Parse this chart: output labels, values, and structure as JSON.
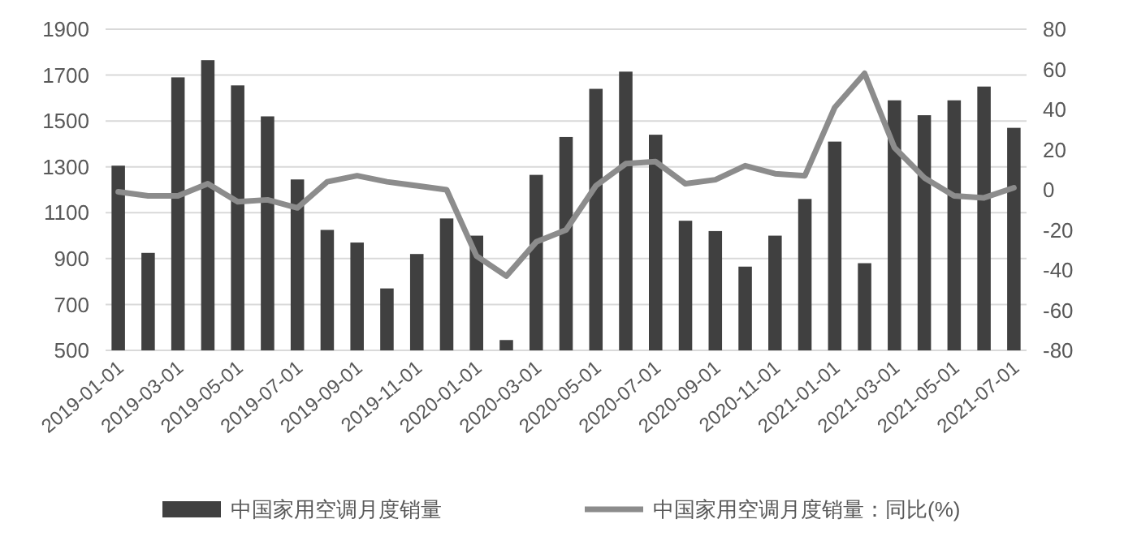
{
  "chart_data": {
    "type": "bar",
    "categories": [
      "2019-01-01",
      null,
      "2019-03-01",
      null,
      "2019-05-01",
      null,
      "2019-07-01",
      null,
      "2019-09-01",
      null,
      "2019-11-01",
      null,
      "2020-01-01",
      null,
      "2020-03-01",
      null,
      "2020-05-01",
      null,
      "2020-07-01",
      null,
      "2020-09-01",
      null,
      "2020-11-01",
      null,
      "2021-01-01",
      null,
      "2021-03-01",
      null,
      "2021-05-01",
      null,
      "2021-07-01"
    ],
    "series": [
      {
        "name": "中国家用空调月度销量",
        "color": "#404040",
        "values": [
          1305,
          925,
          1690,
          1765,
          1655,
          1520,
          1245,
          1025,
          970,
          770,
          920,
          1075,
          1000,
          545,
          1265,
          1430,
          1640,
          1715,
          1440,
          1065,
          1020,
          865,
          1000,
          1160,
          1410,
          880,
          1590,
          1525,
          1590,
          1650,
          1470
        ]
      },
      {
        "name": "中国家用空调月度销量：同比(%)",
        "type": "line",
        "axis": "y2",
        "color": "#8c8c8c",
        "values": [
          -1,
          -3,
          -3,
          3,
          -6,
          -5,
          -9,
          4,
          7,
          4,
          2,
          0,
          -33,
          -43,
          -26,
          -20,
          2,
          13,
          14,
          3,
          5,
          12,
          8,
          7,
          41,
          58,
          21,
          6,
          -3,
          -4,
          1
        ]
      }
    ],
    "ylim": [
      500,
      1900
    ],
    "yticks": [
      500,
      700,
      900,
      1100,
      1300,
      1500,
      1700,
      1900
    ],
    "y2lim": [
      -80,
      80
    ],
    "y2ticks": [
      -80,
      -60,
      -40,
      -20,
      0,
      20,
      40,
      60,
      80
    ],
    "grid": "y",
    "legend": "bottom"
  }
}
